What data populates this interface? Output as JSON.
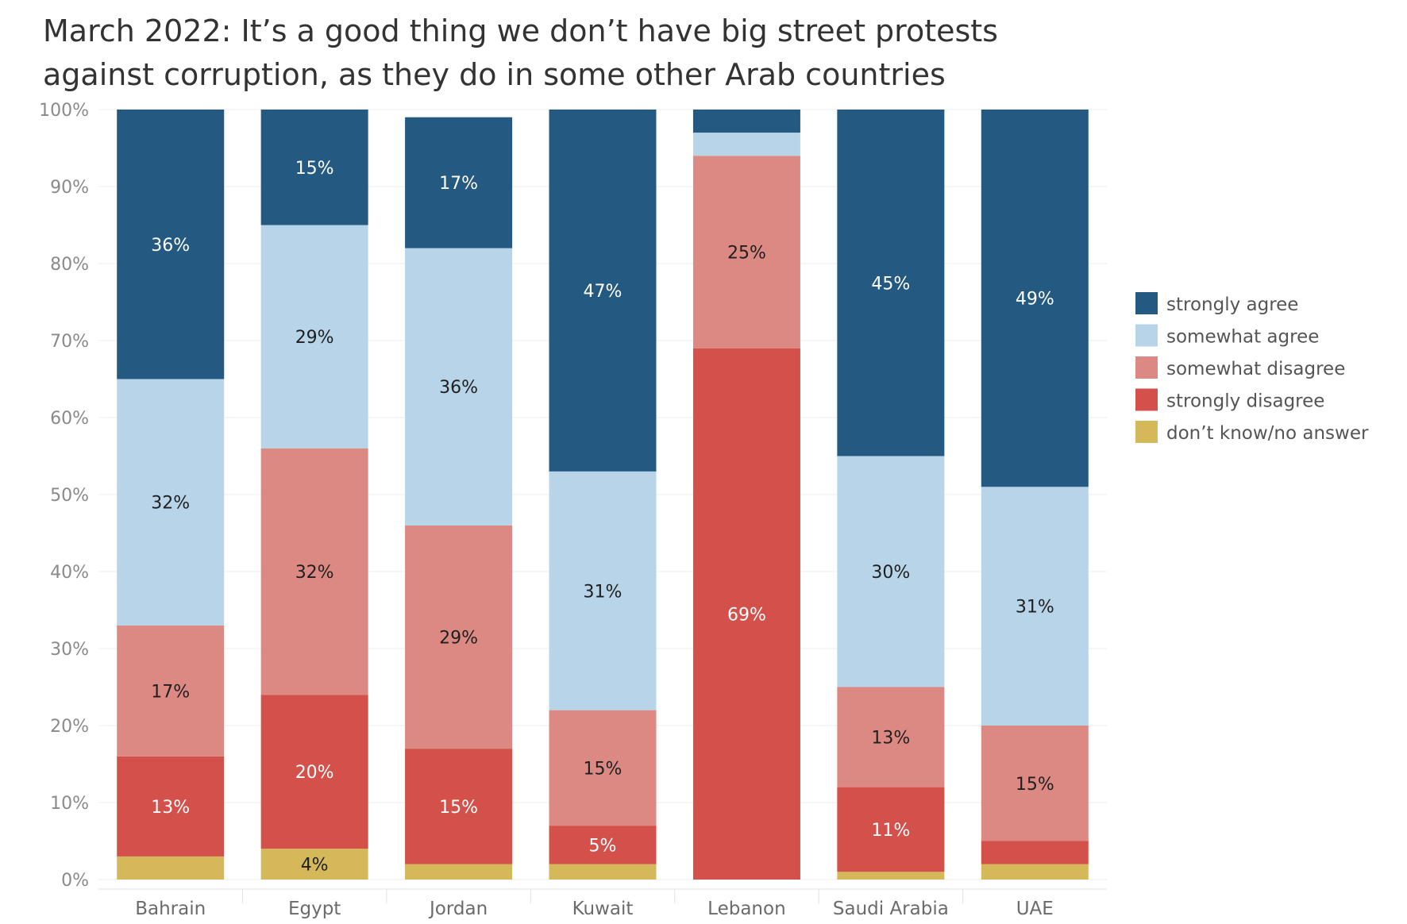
{
  "chart_data": {
    "type": "bar",
    "stacked": true,
    "title": "March 2022: It’s a good thing we don’t have big street protests against corruption, as they do in some other Arab countries",
    "categories": [
      "Bahrain",
      "Egypt",
      "Jordan",
      "Kuwait",
      "Lebanon",
      "Saudi Arabia",
      "UAE"
    ],
    "series": [
      {
        "name": "don’t know/no answer",
        "color": "#d4b85a",
        "values": [
          3,
          4,
          2,
          2,
          0,
          1,
          2
        ]
      },
      {
        "name": "strongly disagree",
        "color": "#d4514b",
        "values": [
          13,
          20,
          15,
          5,
          69,
          11,
          3
        ]
      },
      {
        "name": "somewhat disagree",
        "color": "#dd8983",
        "values": [
          17,
          32,
          29,
          15,
          25,
          13,
          15
        ]
      },
      {
        "name": "somewhat agree",
        "color": "#b7d4e9",
        "values": [
          32,
          29,
          36,
          31,
          3,
          30,
          31
        ]
      },
      {
        "name": "strongly agree",
        "color": "#245a82",
        "values": [
          36,
          15,
          17,
          47,
          3,
          45,
          49
        ]
      }
    ],
    "data_labels": [
      [
        "",
        "4%",
        "",
        "",
        "",
        "",
        ""
      ],
      [
        "13%",
        "20%",
        "15%",
        "5%",
        "69%",
        "11%",
        ""
      ],
      [
        "17%",
        "32%",
        "29%",
        "15%",
        "25%",
        "13%",
        "15%"
      ],
      [
        "32%",
        "29%",
        "36%",
        "31%",
        "",
        "30%",
        "31%"
      ],
      [
        "36%",
        "15%",
        "17%",
        "47%",
        "",
        "45%",
        "49%"
      ]
    ],
    "y_ticks": [
      "0%",
      "10%",
      "20%",
      "30%",
      "40%",
      "50%",
      "60%",
      "70%",
      "80%",
      "90%",
      "100%"
    ],
    "ylim": [
      0,
      100
    ],
    "grid": true,
    "legend": {
      "position": "right",
      "items": [
        "strongly agree",
        "somewhat agree",
        "somewhat disagree",
        "strongly disagree",
        "don’t know/no answer"
      ]
    }
  }
}
